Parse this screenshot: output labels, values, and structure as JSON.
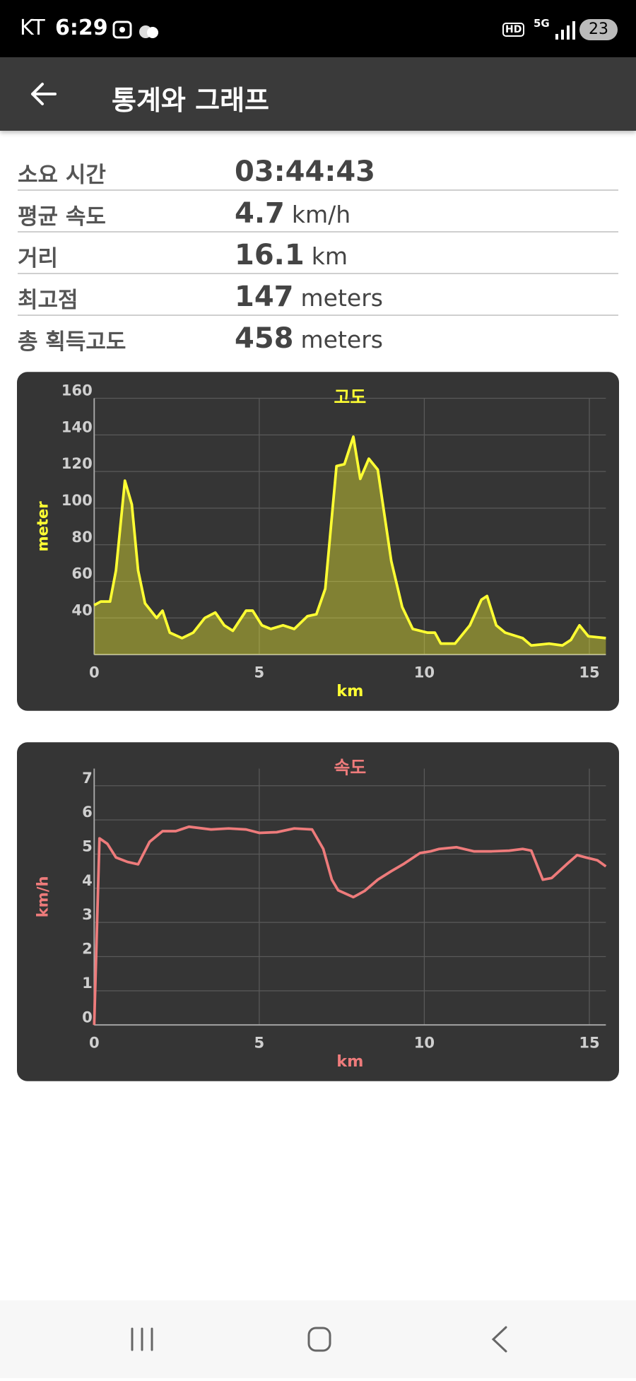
{
  "status_bar": {
    "carrier": "KT",
    "time": "6:29",
    "hd": "HD",
    "network": "5G",
    "battery": "23"
  },
  "app_bar": {
    "title": "통계와 그래프"
  },
  "stats": [
    {
      "label": "소요 시간",
      "value": "03:44:43"
    },
    {
      "label": "평균 속도",
      "value": "4.7",
      "unit": "km/h"
    },
    {
      "label": "거리",
      "value": "16.1",
      "unit": "km"
    },
    {
      "label": "최고점",
      "value": "147",
      "unit": "meters"
    },
    {
      "label": "총 획득고도",
      "value": "458",
      "unit": "meters"
    }
  ],
  "chart_data": [
    {
      "type": "line",
      "title": "고도",
      "x_label": "km",
      "y_label": "meter",
      "area": true,
      "grid": true,
      "x": [
        0,
        0.2,
        0.48,
        0.66,
        0.93,
        1.14,
        1.33,
        1.54,
        1.89,
        2.07,
        2.29,
        2.66,
        3.0,
        3.35,
        3.67,
        3.94,
        4.2,
        4.6,
        4.8,
        5.08,
        5.35,
        5.72,
        6.06,
        6.46,
        6.73,
        7.0,
        7.34,
        7.58,
        7.85,
        8.06,
        8.32,
        8.59,
        9.0,
        9.33,
        9.65,
        10.1,
        10.32,
        10.5,
        10.93,
        11.38,
        11.73,
        11.9,
        12.18,
        12.45,
        12.98,
        13.24,
        13.78,
        14.18,
        14.44,
        14.7,
        14.97,
        15.5
      ],
      "series": [
        {
          "color": "#ffff33",
          "values": [
            47,
            49,
            49,
            66,
            115,
            102,
            66,
            48,
            40,
            44,
            32,
            29,
            32,
            40,
            43,
            36,
            33,
            44,
            44,
            36,
            34,
            36,
            34,
            41,
            42,
            56,
            123,
            124,
            139,
            116,
            127,
            121,
            71,
            46,
            34,
            32,
            32,
            26,
            26,
            36,
            50,
            52,
            36,
            32,
            29,
            25,
            26,
            25,
            28,
            36,
            30,
            29
          ]
        }
      ],
      "xlim": [
        0,
        15.5
      ],
      "xticks": [
        0,
        5,
        10,
        15
      ],
      "ylim": [
        20,
        160
      ],
      "yticks": [
        40,
        60,
        80,
        100,
        120,
        140,
        160
      ]
    },
    {
      "type": "line",
      "title": "속도",
      "x_label": "km",
      "y_label": "km/h",
      "area": false,
      "grid": true,
      "x": [
        0,
        0.16,
        0.4,
        0.66,
        1.01,
        1.33,
        1.68,
        2.07,
        2.47,
        2.87,
        3.54,
        4.07,
        4.6,
        5.0,
        5.53,
        6.06,
        6.6,
        6.94,
        7.2,
        7.39,
        7.85,
        8.19,
        8.59,
        9.0,
        9.39,
        9.87,
        10.19,
        10.45,
        10.98,
        11.5,
        12.04,
        12.57,
        12.98,
        13.24,
        13.59,
        13.86,
        14.31,
        14.63,
        14.9,
        15.24,
        15.5
      ],
      "series": [
        {
          "color": "#ee7b7b",
          "values": [
            0,
            5.46,
            5.3,
            4.9,
            4.77,
            4.7,
            5.36,
            5.67,
            5.67,
            5.8,
            5.72,
            5.75,
            5.72,
            5.62,
            5.64,
            5.75,
            5.72,
            5.15,
            4.25,
            3.94,
            3.74,
            3.92,
            4.25,
            4.5,
            4.72,
            5.03,
            5.08,
            5.15,
            5.2,
            5.08,
            5.08,
            5.1,
            5.15,
            5.1,
            4.25,
            4.3,
            4.7,
            4.97,
            4.9,
            4.82,
            4.64
          ]
        }
      ],
      "xlim": [
        0,
        15.5
      ],
      "xticks": [
        0,
        5,
        10,
        15
      ],
      "ylim": [
        0,
        7.5
      ],
      "yticks": [
        0,
        1,
        2,
        3,
        4,
        5,
        6,
        7
      ]
    }
  ]
}
